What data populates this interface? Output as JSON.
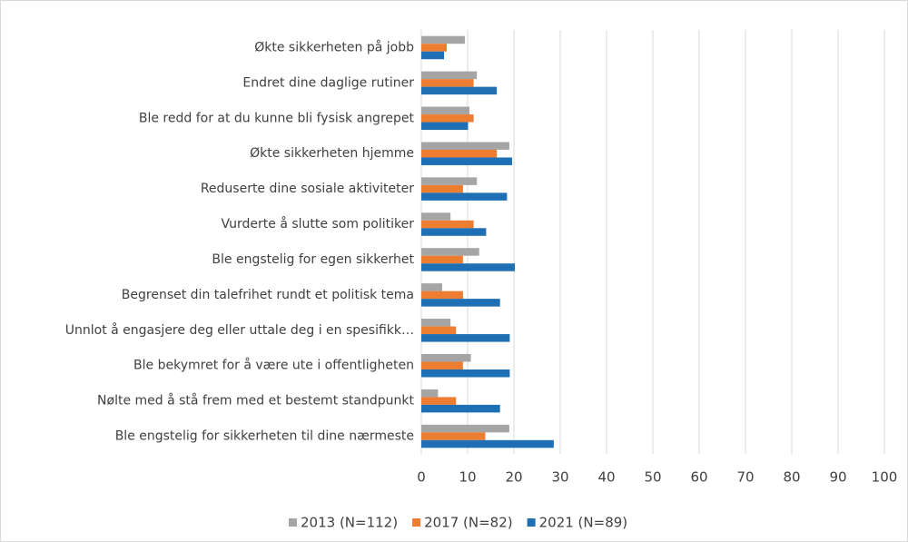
{
  "chart_data": {
    "type": "barh",
    "categories": [
      "Økte sikkerheten på jobb",
      "Endret dine daglige rutiner",
      "Ble redd for at du kunne bli fysisk angrepet",
      "Økte sikkerheten hjemme",
      "Reduserte dine sosiale aktiviteter",
      "Vurderte å slutte som politiker",
      "Ble engstelig for egen sikkerhet",
      "Begrenset din talefrihet rundt et politisk tema",
      "Unnlot å engasjere deg eller uttale deg i en spesifikk…",
      "Ble bekymret for å være ute i offentligheten",
      "Nølte med å stå frem med et bestemt standpunkt",
      "Ble engstelig for sikkerheten til dine nærmeste"
    ],
    "series": [
      {
        "name": "2013 (N=112)",
        "color": "#a5a5a5",
        "values": [
          9.4,
          12,
          10.4,
          19,
          12,
          6.3,
          12.5,
          4.5,
          6.3,
          10.7,
          3.6,
          19
        ]
      },
      {
        "name": "2017 (N=82)",
        "color": "#ed7d31",
        "values": [
          5.5,
          11.3,
          11.3,
          16.3,
          9,
          11.3,
          9,
          9,
          7.5,
          9,
          7.5,
          13.8
        ]
      },
      {
        "name": "2021 (N=89)",
        "color": "#1f6fb5",
        "values": [
          4.9,
          16.3,
          10.1,
          19.6,
          18.5,
          14,
          20.2,
          17,
          19.1,
          19.1,
          17,
          28.6
        ]
      }
    ],
    "xlim": [
      0,
      100
    ],
    "xticks": [
      0,
      10,
      20,
      30,
      40,
      50,
      60,
      70,
      80,
      90,
      100
    ],
    "grid": true,
    "legend": "bottom"
  }
}
